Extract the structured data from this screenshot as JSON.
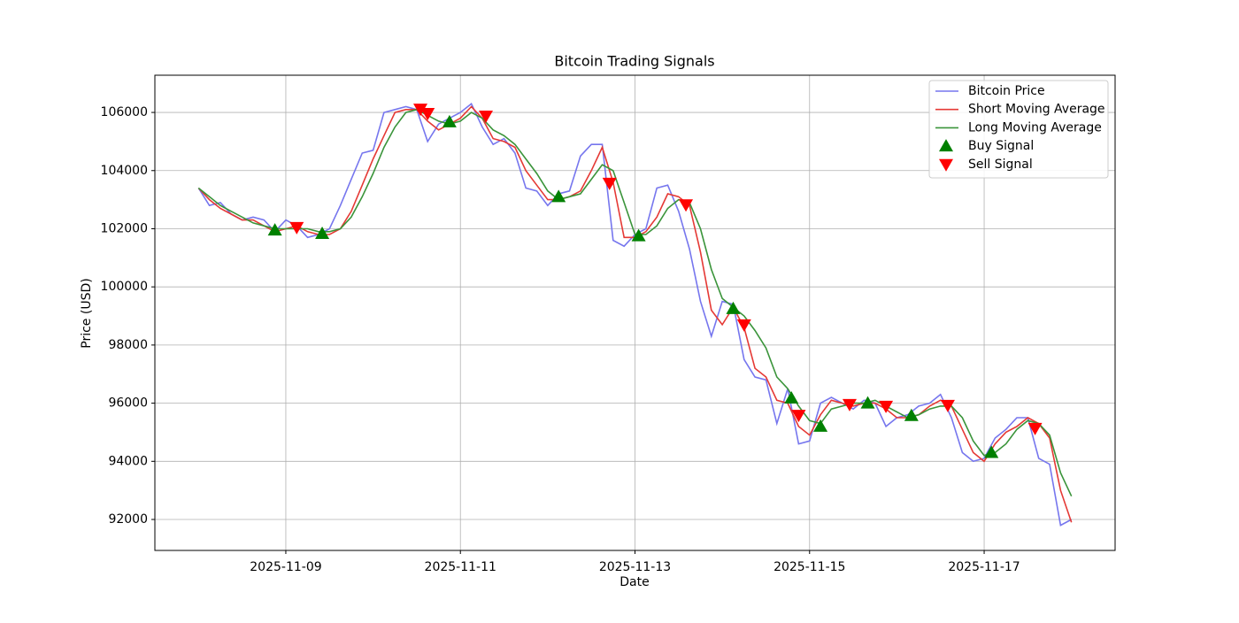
{
  "chart_data": {
    "type": "line",
    "title": "Bitcoin Trading Signals",
    "x_label": "Date",
    "y_label": "Price (USD)",
    "x": [
      "2025-11-08 00:00",
      "2025-11-08 03:00",
      "2025-11-08 06:00",
      "2025-11-08 09:00",
      "2025-11-08 12:00",
      "2025-11-08 15:00",
      "2025-11-08 18:00",
      "2025-11-08 21:00",
      "2025-11-09 00:00",
      "2025-11-09 03:00",
      "2025-11-09 06:00",
      "2025-11-09 09:00",
      "2025-11-09 12:00",
      "2025-11-09 15:00",
      "2025-11-09 18:00",
      "2025-11-09 21:00",
      "2025-11-10 00:00",
      "2025-11-10 03:00",
      "2025-11-10 06:00",
      "2025-11-10 09:00",
      "2025-11-10 12:00",
      "2025-11-10 15:00",
      "2025-11-10 18:00",
      "2025-11-10 21:00",
      "2025-11-11 00:00",
      "2025-11-11 03:00",
      "2025-11-11 06:00",
      "2025-11-11 09:00",
      "2025-11-11 12:00",
      "2025-11-11 15:00",
      "2025-11-11 18:00",
      "2025-11-11 21:00",
      "2025-11-12 00:00",
      "2025-11-12 03:00",
      "2025-11-12 06:00",
      "2025-11-12 09:00",
      "2025-11-12 12:00",
      "2025-11-12 15:00",
      "2025-11-12 18:00",
      "2025-11-12 21:00",
      "2025-11-13 00:00",
      "2025-11-13 03:00",
      "2025-11-13 06:00",
      "2025-11-13 09:00",
      "2025-11-13 12:00",
      "2025-11-13 15:00",
      "2025-11-13 18:00",
      "2025-11-13 21:00",
      "2025-11-14 00:00",
      "2025-11-14 03:00",
      "2025-11-14 06:00",
      "2025-11-14 09:00",
      "2025-11-14 12:00",
      "2025-11-14 15:00",
      "2025-11-14 18:00",
      "2025-11-14 21:00",
      "2025-11-15 00:00",
      "2025-11-15 03:00",
      "2025-11-15 06:00",
      "2025-11-15 09:00",
      "2025-11-15 12:00",
      "2025-11-15 15:00",
      "2025-11-15 18:00",
      "2025-11-15 21:00",
      "2025-11-16 00:00",
      "2025-11-16 03:00",
      "2025-11-16 06:00",
      "2025-11-16 09:00",
      "2025-11-16 12:00",
      "2025-11-16 15:00",
      "2025-11-16 18:00",
      "2025-11-16 21:00",
      "2025-11-17 00:00",
      "2025-11-17 03:00",
      "2025-11-17 06:00",
      "2025-11-17 09:00",
      "2025-11-17 12:00",
      "2025-11-17 15:00",
      "2025-11-17 18:00",
      "2025-11-17 21:00",
      "2025-11-18 00:00"
    ],
    "series": [
      {
        "name": "Bitcoin Price",
        "color": "#7676ee",
        "style": "line",
        "values": [
          103400,
          102800,
          102900,
          102500,
          102300,
          102400,
          102300,
          101900,
          102300,
          102100,
          101700,
          101800,
          102000,
          102800,
          103700,
          104600,
          104700,
          106000,
          106100,
          106200,
          106100,
          105000,
          105600,
          105800,
          106000,
          106300,
          105500,
          104900,
          105100,
          104600,
          103400,
          103300,
          102800,
          103200,
          103300,
          104500,
          104900,
          104900,
          101600,
          101400,
          101800,
          102000,
          103400,
          103500,
          102600,
          101300,
          99500,
          98300,
          99500,
          99400,
          97500,
          96900,
          96800,
          95300,
          96500,
          94600,
          94700,
          96000,
          96200,
          96000,
          95800,
          96100,
          96000,
          95200,
          95500,
          95600,
          95900,
          96000,
          96300,
          95500,
          94300,
          94000,
          94100,
          94800,
          95100,
          95500,
          95500,
          94100,
          93900,
          91800,
          92000
        ]
      },
      {
        "name": "Short Moving Average",
        "color": "#e53935",
        "style": "line",
        "values": [
          103400,
          103000,
          102700,
          102500,
          102300,
          102300,
          102100,
          101900,
          102000,
          102100,
          101900,
          101800,
          101800,
          102000,
          102600,
          103500,
          104400,
          105200,
          106000,
          106100,
          106100,
          105700,
          105400,
          105600,
          105800,
          106200,
          105800,
          105100,
          105000,
          104800,
          104000,
          103500,
          103000,
          103000,
          103100,
          103300,
          104000,
          104800,
          103600,
          101700,
          101700,
          101900,
          102400,
          103200,
          103100,
          102800,
          101200,
          99200,
          98700,
          99300,
          98600,
          97200,
          96900,
          96100,
          96000,
          95200,
          94900,
          95600,
          96100,
          96000,
          95900,
          96000,
          96000,
          95800,
          95500,
          95500,
          95600,
          95900,
          96100,
          95900,
          95100,
          94300,
          94000,
          94600,
          95000,
          95200,
          95500,
          95300,
          94800,
          93000,
          91900
        ]
      },
      {
        "name": "Long Moving Average",
        "color": "#3a943a",
        "style": "line",
        "values": [
          103400,
          103100,
          102800,
          102600,
          102400,
          102200,
          102100,
          102000,
          102000,
          102000,
          102000,
          101900,
          101900,
          102000,
          102400,
          103100,
          103900,
          104800,
          105500,
          106000,
          106100,
          105900,
          105700,
          105600,
          105700,
          106000,
          105800,
          105400,
          105200,
          104900,
          104400,
          103900,
          103300,
          103000,
          103100,
          103200,
          103700,
          104200,
          104000,
          102900,
          101800,
          101800,
          102100,
          102700,
          103000,
          102900,
          102000,
          100600,
          99600,
          99300,
          99000,
          98500,
          97900,
          96900,
          96500,
          95900,
          95400,
          95300,
          95800,
          95900,
          96000,
          96000,
          96100,
          95900,
          95700,
          95500,
          95600,
          95800,
          95900,
          95900,
          95500,
          94700,
          94200,
          94300,
          94600,
          95100,
          95400,
          95300,
          94900,
          93600,
          92800
        ]
      },
      {
        "name": "Buy Signal",
        "color": "#008000",
        "style": "up",
        "x": [
          "2025-11-08 21:00",
          "2025-11-09 10:00",
          "2025-11-10 21:00",
          "2025-11-12 03:00",
          "2025-11-13 01:00",
          "2025-11-14 03:00",
          "2025-11-14 19:00",
          "2025-11-15 03:00",
          "2025-11-15 16:00",
          "2025-11-16 04:00",
          "2025-11-17 02:00"
        ],
        "values": [
          101950,
          101830,
          105670,
          103100,
          101750,
          99250,
          96170,
          95200,
          96000,
          95570,
          94300
        ]
      },
      {
        "name": "Sell Signal",
        "color": "#ff0000",
        "style": "down",
        "x": [
          "2025-11-09 03:00",
          "2025-11-10 13:00",
          "2025-11-10 15:00",
          "2025-11-11 07:00",
          "2025-11-12 17:00",
          "2025-11-13 14:00",
          "2025-11-14 06:00",
          "2025-11-14 21:00",
          "2025-11-15 11:00",
          "2025-11-15 21:00",
          "2025-11-16 14:00",
          "2025-11-17 14:00"
        ],
        "values": [
          102050,
          106120,
          105970,
          105880,
          103570,
          102830,
          98700,
          95590,
          95960,
          95900,
          95930,
          95140
        ]
      }
    ],
    "xlim": [
      "2025-11-07 12:00",
      "2025-11-18 12:00"
    ],
    "xticks": [
      "2025-11-09",
      "2025-11-11",
      "2025-11-13",
      "2025-11-15",
      "2025-11-17"
    ],
    "ylim": [
      90935,
      107280
    ],
    "yticks": [
      92000,
      94000,
      96000,
      98000,
      100000,
      102000,
      104000,
      106000
    ],
    "grid": true,
    "legend": "upper right"
  }
}
